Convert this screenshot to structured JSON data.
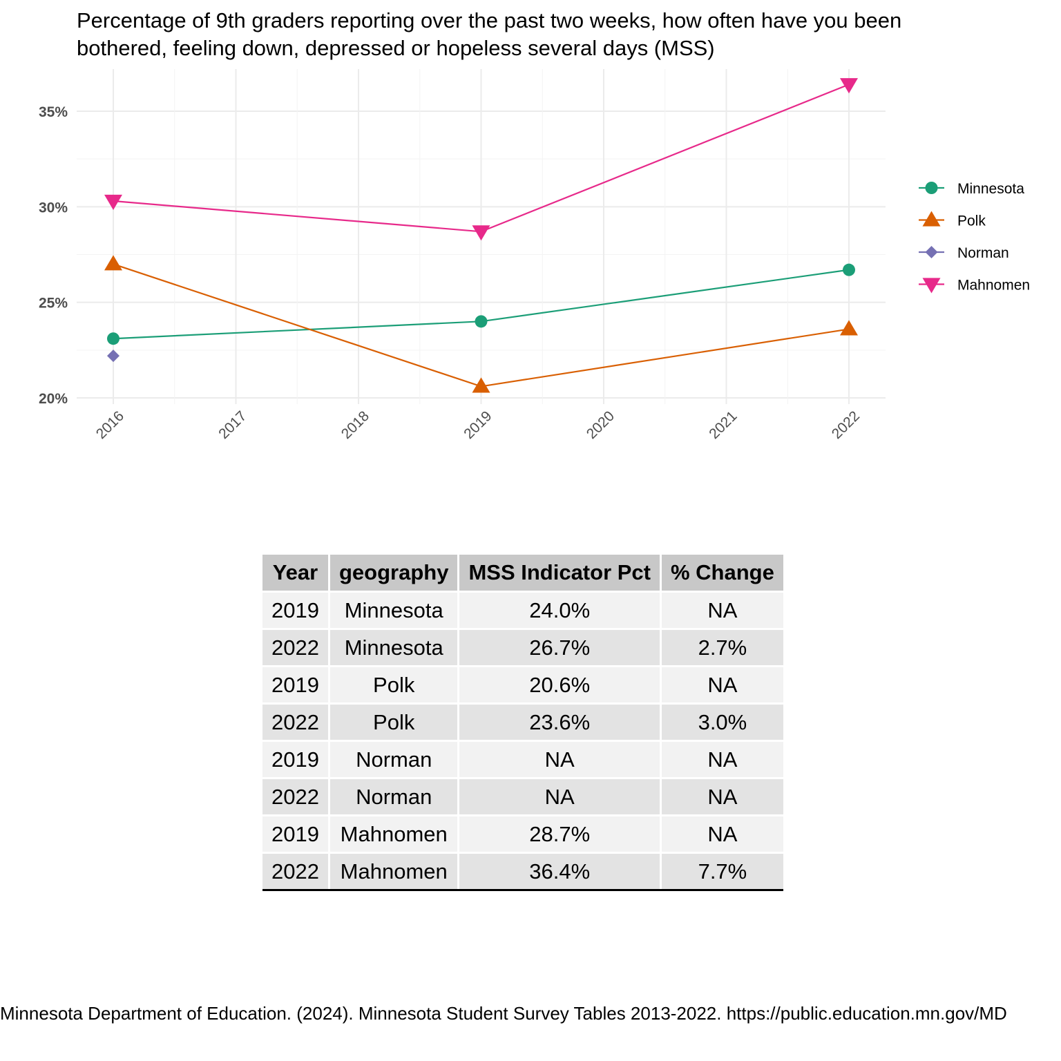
{
  "chart_data": {
    "type": "line",
    "title": "Percentage of 9th graders reporting over the past two weeks, how often have you been bothered, feeling down, depressed or hopeless several days (MSS)",
    "title_lines": [
      "Percentage of 9th graders reporting over the past two weeks, how often have you been",
      "bothered, feeling down, depressed or hopeless several days (MSS)"
    ],
    "xlabel": "",
    "ylabel": "",
    "x_ticks": [
      "2016",
      "2017",
      "2018",
      "2019",
      "2020",
      "2021",
      "2022"
    ],
    "xlim": [
      2016,
      2022
    ],
    "y_ticks": [
      20,
      25,
      30,
      35
    ],
    "y_tick_labels": [
      "20%",
      "25%",
      "30%",
      "35%"
    ],
    "ylim": [
      20,
      36.4
    ],
    "grid": true,
    "legend_position": "right",
    "series": [
      {
        "name": "Minnesota",
        "color": "#1b9e77",
        "marker": "circle",
        "x": [
          2016,
          2019,
          2022
        ],
        "values": [
          23.1,
          24.0,
          26.7
        ]
      },
      {
        "name": "Polk",
        "color": "#d95f02",
        "marker": "triangle-up",
        "x": [
          2016,
          2019,
          2022
        ],
        "values": [
          27.0,
          20.6,
          23.6
        ]
      },
      {
        "name": "Norman",
        "color": "#7570b3",
        "marker": "diamond",
        "x": [
          2016
        ],
        "values": [
          22.2
        ]
      },
      {
        "name": "Mahnomen",
        "color": "#e7298a",
        "marker": "triangle-down",
        "x": [
          2016,
          2019,
          2022
        ],
        "values": [
          30.3,
          28.7,
          36.4
        ]
      }
    ]
  },
  "table": {
    "headers": [
      "Year",
      "geography",
      "MSS Indicator Pct",
      "% Change"
    ],
    "rows": [
      [
        "2019",
        "Minnesota",
        "24.0%",
        "NA"
      ],
      [
        "2022",
        "Minnesota",
        "26.7%",
        "2.7%"
      ],
      [
        "2019",
        "Polk",
        "20.6%",
        "NA"
      ],
      [
        "2022",
        "Polk",
        "23.6%",
        "3.0%"
      ],
      [
        "2019",
        "Norman",
        "NA",
        "NA"
      ],
      [
        "2022",
        "Norman",
        "NA",
        "NA"
      ],
      [
        "2019",
        "Mahnomen",
        "28.7%",
        "NA"
      ],
      [
        "2022",
        "Mahnomen",
        "36.4%",
        "7.7%"
      ]
    ]
  },
  "source": "Minnesota Department of Education. (2024). Minnesota Student Survey Tables 2013-2022. https://public.education.mn.gov/MD"
}
